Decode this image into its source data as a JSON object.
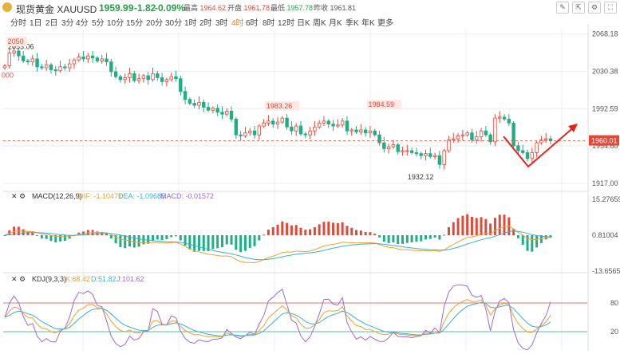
{
  "header": {
    "name": "现货黄金 XAUUSD",
    "price": "1959.99",
    "change": "-1.82",
    "change_pct": "-0.09%",
    "stats": [
      {
        "label": "最高",
        "value": "1964.62",
        "color": "#e04a3a"
      },
      {
        "label": "开盘",
        "value": "1961.78",
        "color": "#e04a3a"
      },
      {
        "label": "最低",
        "value": "1957.78",
        "color": "#2a9d4a"
      },
      {
        "label": "昨收",
        "value": "1961.81",
        "color": "#555555"
      }
    ],
    "icons": [
      "draw-icon",
      "expand-icon",
      "settings-icon",
      "fullscreen-icon"
    ]
  },
  "tabs": [
    "分时",
    "1日",
    "2日",
    "3分",
    "4分",
    "5分",
    "10分",
    "15分",
    "20分",
    "30分",
    "1时",
    "2时",
    "3时",
    "4时",
    "6时",
    "8时",
    "12时",
    "日K",
    "周K",
    "月K",
    "季K",
    "年K",
    "更多"
  ],
  "active_tab": "4时",
  "colors": {
    "up": "#e04a3a",
    "down": "#1fae85",
    "accent": "#e8822c"
  },
  "chart_data": {
    "type": "candlestick",
    "ylim": [
      1912,
      2072
    ],
    "y_ticks": [
      "2068.18",
      "2030.38",
      "1992.59",
      "1954.80",
      "1917.00"
    ],
    "current_price": "1960.01",
    "left_label": "000",
    "annotations": [
      {
        "text": "2053.06",
        "color": "#333333"
      },
      {
        "text": "2050",
        "color": "#e04a3a"
      },
      {
        "text": "1983.26",
        "color": "#e04a3a"
      },
      {
        "text": "1984.59",
        "color": "#e04a3a"
      },
      {
        "text": "1932.12",
        "color": "#333333"
      }
    ],
    "closes": [
      2036,
      2049,
      2051,
      2046,
      2041,
      2040,
      2043,
      2035,
      2034,
      2037,
      2032,
      2031,
      2035,
      2034,
      2038,
      2042,
      2045,
      2043,
      2046,
      2044,
      2041,
      2043,
      2040,
      2030,
      2025,
      2022,
      2024,
      2028,
      2021,
      2023,
      2026,
      2022,
      2028,
      2024,
      2020,
      2022,
      2025,
      2023,
      2010,
      2002,
      1998,
      1996,
      1999,
      1994,
      1991,
      1993,
      1989,
      1987,
      1990,
      1982,
      1966,
      1965,
      1968,
      1970,
      1966,
      1975,
      1978,
      1980,
      1977,
      1979,
      1983,
      1974,
      1970,
      1975,
      1967,
      1966,
      1970,
      1974,
      1978,
      1980,
      1977,
      1975,
      1976,
      1980,
      1970,
      1971,
      1969,
      1971,
      1968,
      1970,
      1966,
      1958,
      1952,
      1954,
      1956,
      1949,
      1950,
      1950,
      1948,
      1947,
      1945,
      1947,
      1944,
      1945,
      1936,
      1950,
      1961,
      1962,
      1965,
      1966,
      1968,
      1961,
      1964,
      1970,
      1966,
      1959,
      1983,
      1984,
      1982,
      1978,
      1955,
      1950,
      1948,
      1942,
      1948,
      1958,
      1961,
      1962,
      1960
    ],
    "high_extremes": {
      "max": 2053.06,
      "label_max": "2053.06"
    },
    "macd": {
      "label": "MACD(12,26,9)",
      "dif": "DIF: -1.10471",
      "dea": "DEA: -1.09685",
      "macd": "MACD: -0.01572",
      "ylim": [
        -13.65651,
        15.27659
      ],
      "y_ticks": [
        "15.27659",
        "0.81004",
        "-13.65651"
      ],
      "colors": {
        "dif": "#f0a030",
        "dea": "#3ab0d8"
      }
    },
    "kdj": {
      "label": "KDJ(9,3,3)",
      "k": "K:68.42",
      "d": "D:51.82",
      "j": "J:101.62",
      "levels": [
        "80",
        "20"
      ],
      "colors": {
        "k": "#f0a030",
        "d": "#3ab0d8",
        "j": "#9b6ad8"
      }
    }
  }
}
